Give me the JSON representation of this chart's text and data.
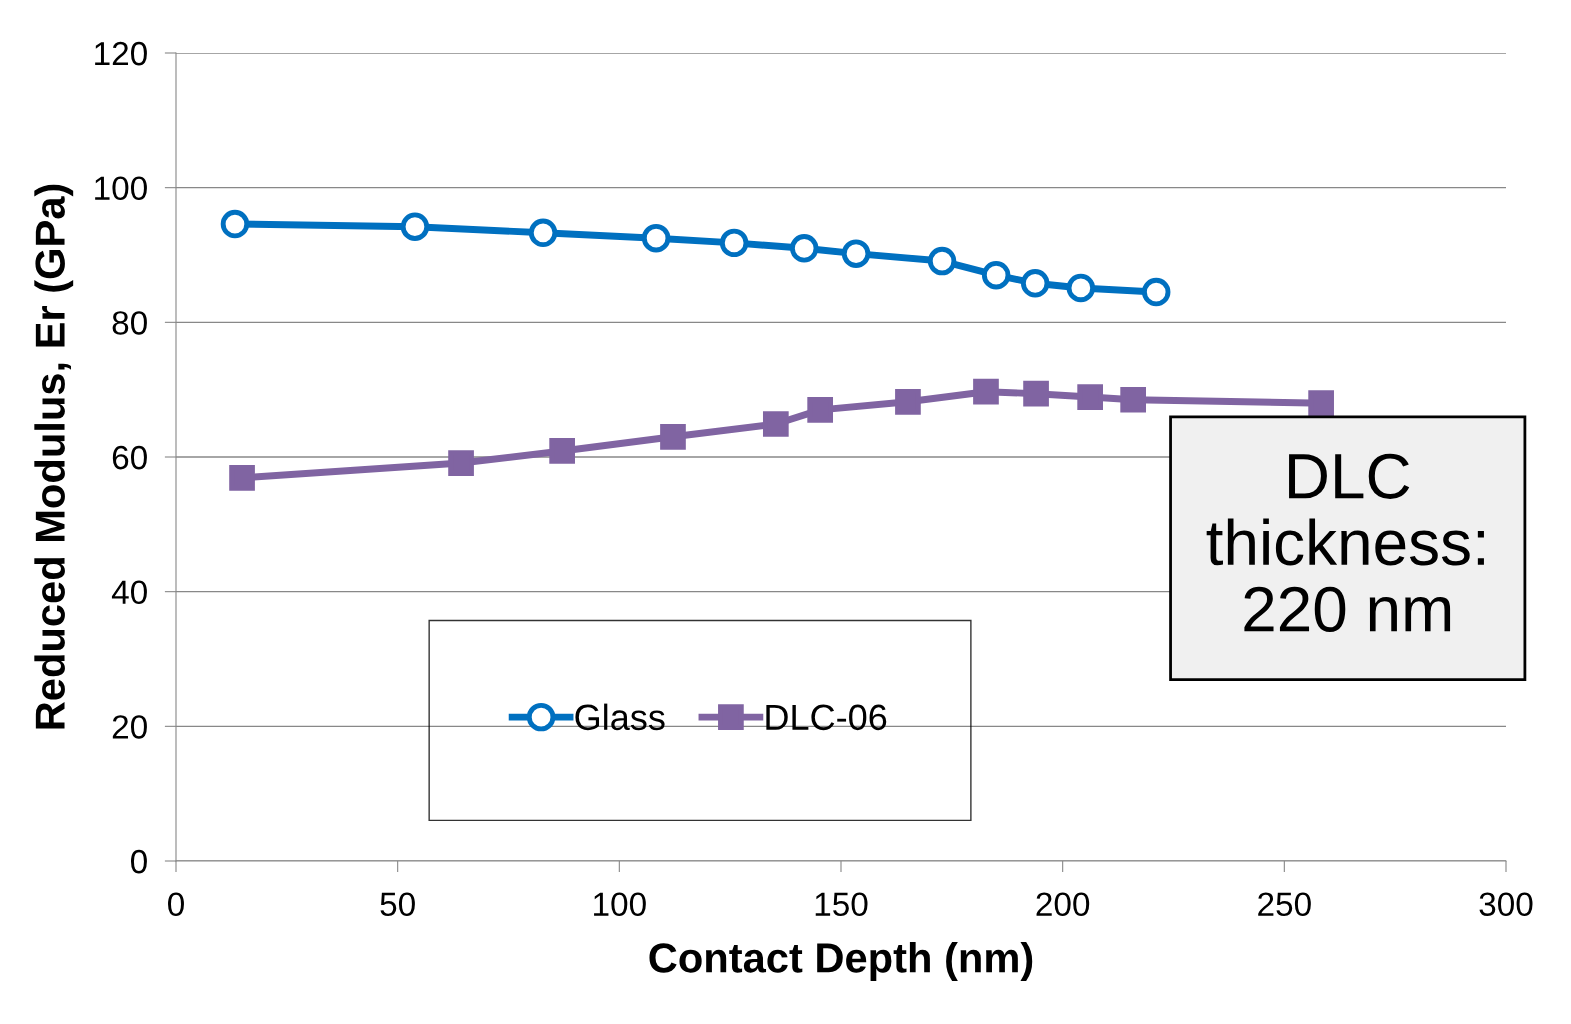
{
  "chart_data": {
    "type": "line",
    "xlabel": "Contact Depth (nm)",
    "ylabel": "Reduced Modulus, Er (GPa)",
    "xlim": [
      0,
      300
    ],
    "xticks": [
      0,
      50,
      100,
      150,
      200,
      250,
      300
    ],
    "ylim": [
      0,
      120
    ],
    "yticks": [
      0,
      20,
      40,
      60,
      80,
      100,
      120
    ],
    "grid": "y",
    "legend": "bottom",
    "line_style": "solid",
    "series": [
      {
        "name": "Glass",
        "color": "#0070c0",
        "marker": "circle",
        "x": [
          13.3,
          53.9,
          82.8,
          108.3,
          125.9,
          141.7,
          153.4,
          172.8,
          185.0,
          193.8,
          204.1,
          221.1
        ],
        "values": [
          94.6,
          94.2,
          93.3,
          92.5,
          91.8,
          91.0,
          90.2,
          89.1,
          87.0,
          85.8,
          85.1,
          84.5
        ]
      },
      {
        "name": "DLC-06",
        "color": "#8064a2",
        "marker": "square",
        "x": [
          14.9,
          64.3,
          87.1,
          112.1,
          135.3,
          145.3,
          165.1,
          182.7,
          194.0,
          206.2,
          215.9,
          258.3
        ],
        "values": [
          56.9,
          59.1,
          60.9,
          63.0,
          64.9,
          67.0,
          68.2,
          69.7,
          69.4,
          68.9,
          68.5,
          68.0
        ]
      }
    ],
    "annotations": [
      "DLC\nthickness:\n220 nm"
    ]
  }
}
